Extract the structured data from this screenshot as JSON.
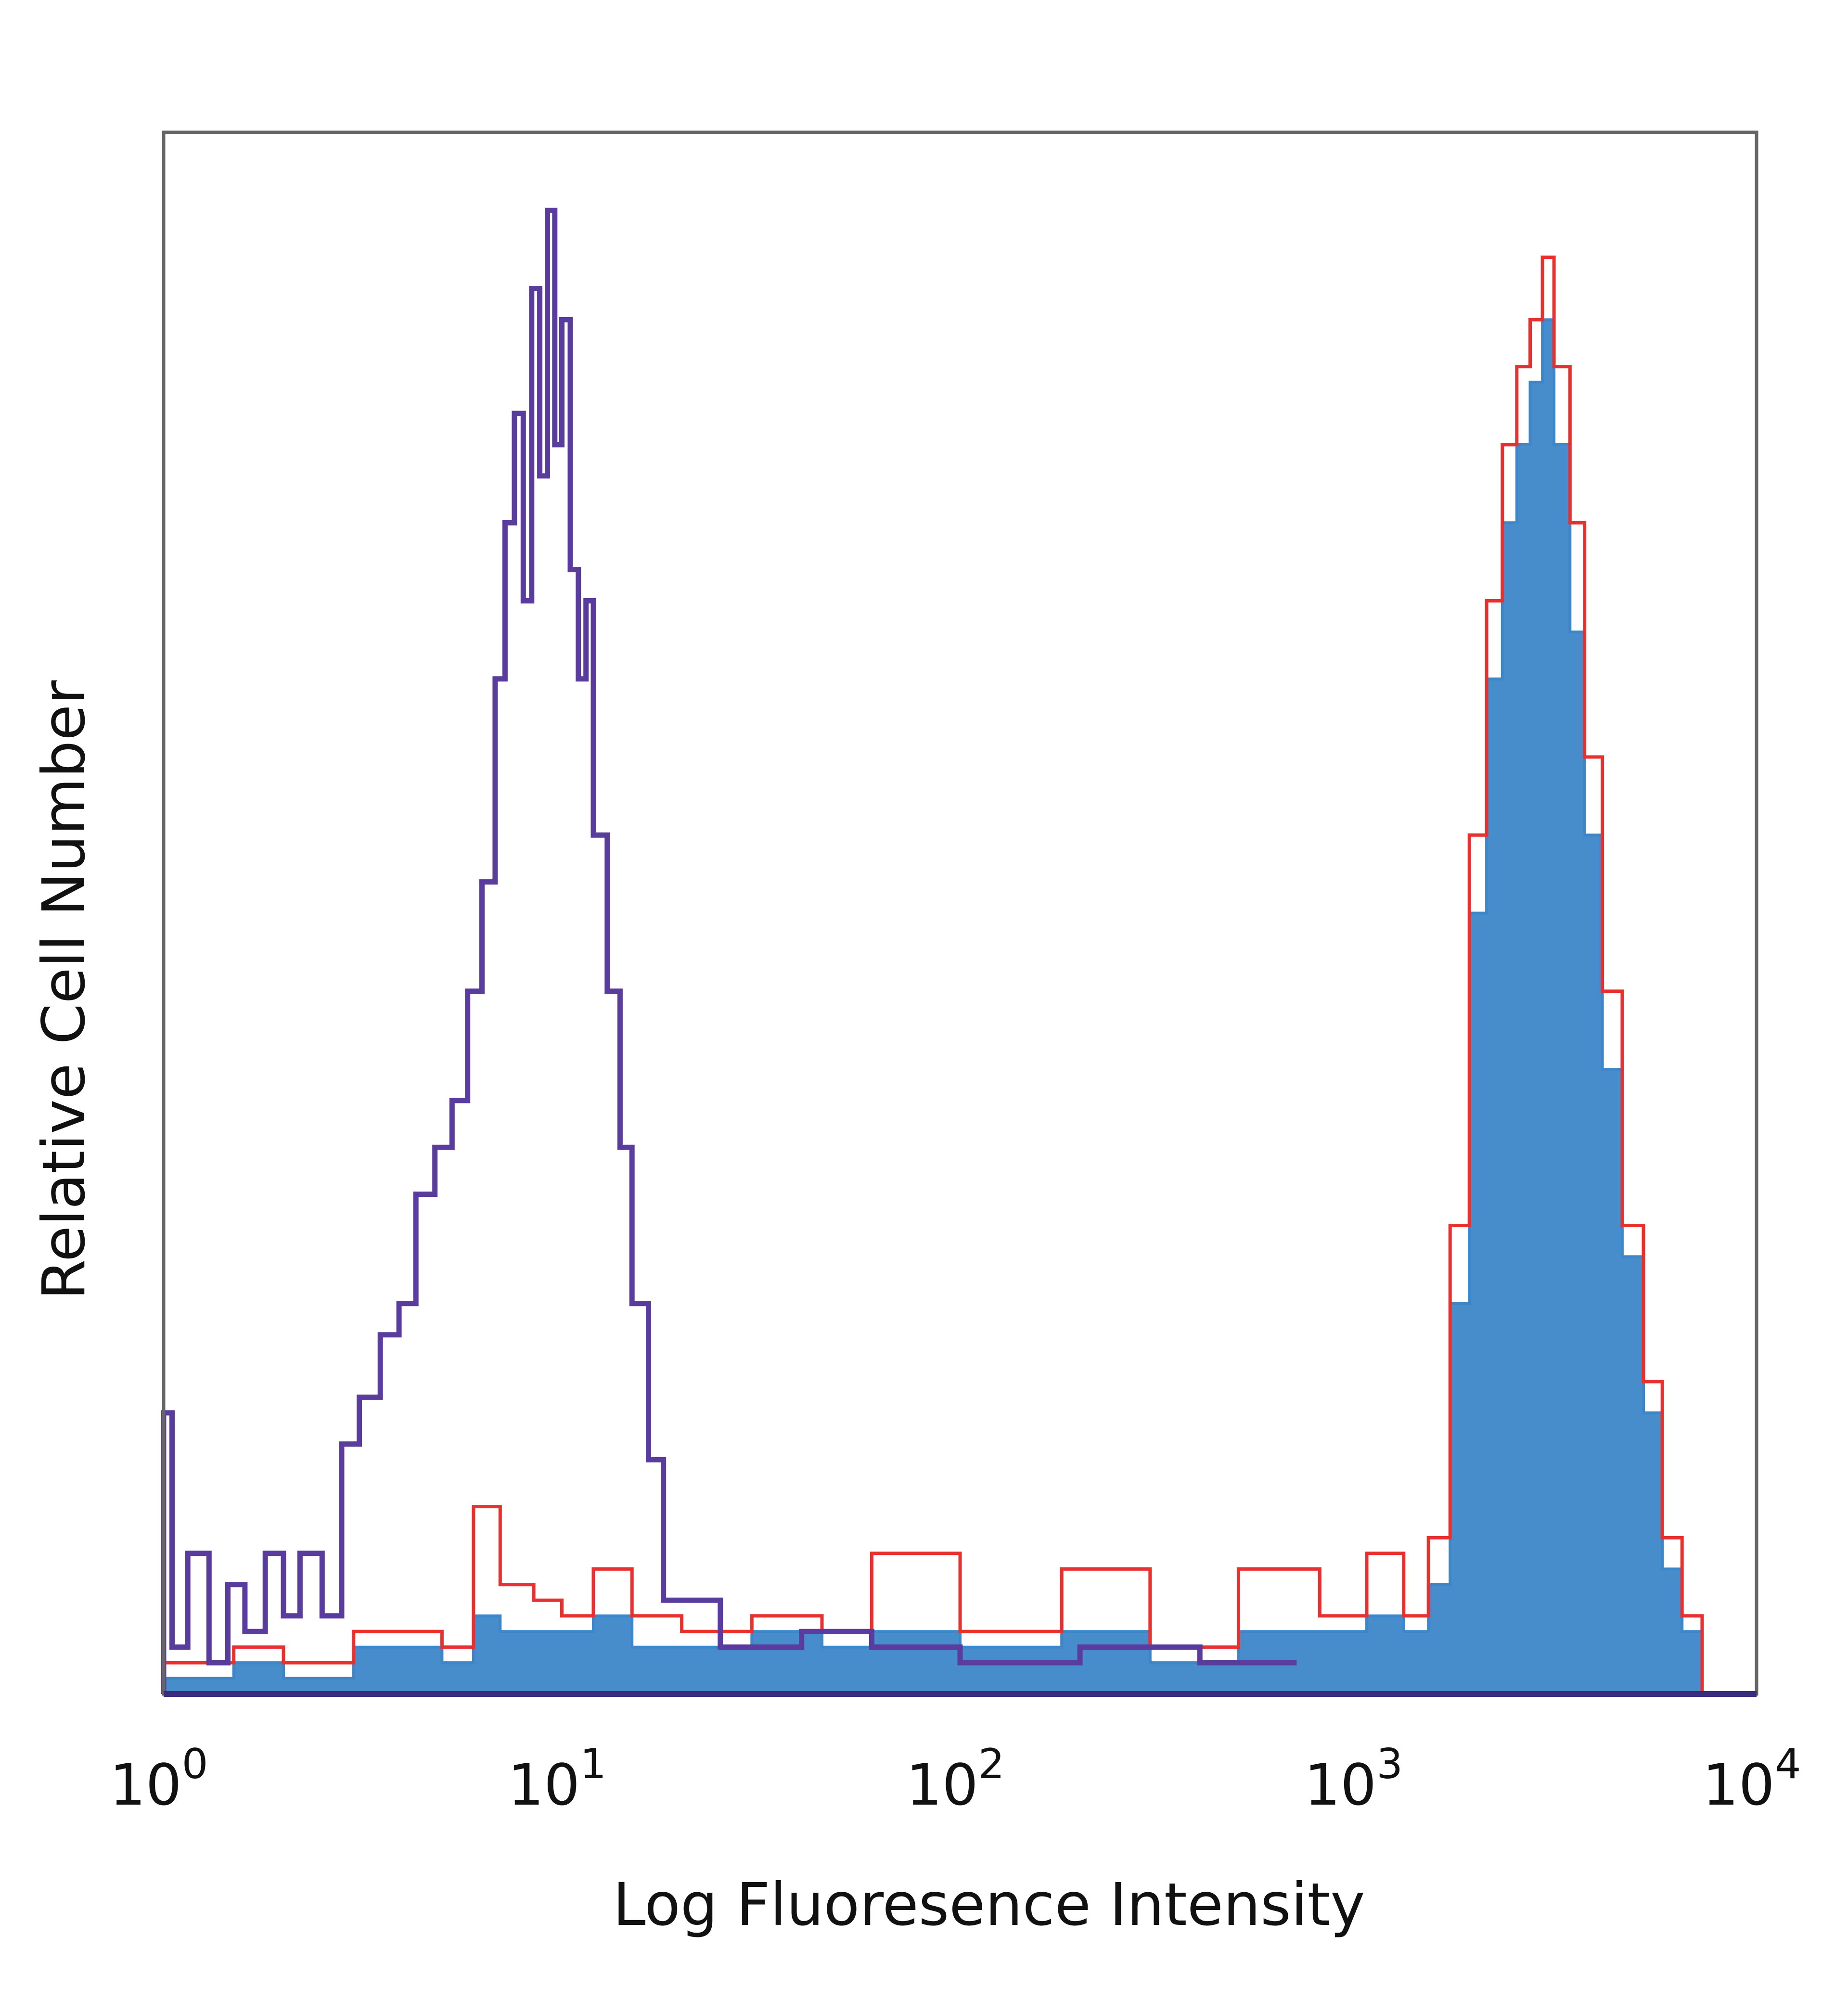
{
  "chart_data": {
    "type": "area",
    "title": "",
    "xlabel": "Log Fluoresence Intensity",
    "ylabel": "Relative Cell Number",
    "x_scale": "log",
    "xlim": [
      1,
      10000
    ],
    "ylim": [
      0,
      100
    ],
    "x_ticks": [
      {
        "value": 1,
        "base": "10",
        "exp": "0"
      },
      {
        "value": 10,
        "base": "10",
        "exp": "1"
      },
      {
        "value": 100,
        "base": "10",
        "exp": "2"
      },
      {
        "value": 1000,
        "base": "10",
        "exp": "3"
      },
      {
        "value": 10000,
        "base": "10",
        "exp": "4"
      }
    ],
    "grid": false,
    "legend": "none",
    "series": [
      {
        "role": "control",
        "color": "#5a3b9e",
        "fill": "none",
        "x": [
          1.0,
          1.05,
          1.15,
          1.3,
          1.45,
          1.6,
          1.8,
          2.0,
          2.2,
          2.5,
          2.8,
          3.1,
          3.5,
          3.9,
          4.3,
          4.8,
          5.3,
          5.8,
          6.3,
          6.8,
          7.2,
          7.6,
          8.0,
          8.4,
          8.8,
          9.2,
          9.6,
          10.0,
          10.5,
          11.0,
          11.5,
          12.0,
          13.0,
          14.0,
          15.0,
          16.5,
          18.0,
          25,
          40,
          60,
          100,
          200,
          400,
          700
        ],
        "y": [
          18,
          3,
          9,
          2,
          7,
          4,
          9,
          5,
          9,
          5,
          16,
          19,
          23,
          25,
          32,
          35,
          38,
          45,
          52,
          65,
          75,
          82,
          70,
          90,
          78,
          95,
          80,
          88,
          72,
          65,
          70,
          55,
          45,
          35,
          25,
          15,
          6,
          3,
          4,
          3,
          2,
          3,
          2,
          2
        ]
      },
      {
        "role": "unstained",
        "color": "#e8312f",
        "fill": "none",
        "x": [
          1.0,
          1.5,
          2.0,
          3.0,
          5.0,
          6.0,
          7.0,
          8.5,
          10.0,
          12.0,
          15.0,
          20,
          30,
          45,
          60,
          100,
          180,
          300,
          500,
          800,
          1050,
          1300,
          1500,
          1700,
          1900,
          2100,
          2300,
          2500,
          2700,
          2900,
          3100,
          3400,
          3700,
          4100,
          4600,
          5200,
          5800,
          6500,
          7300
        ],
        "y": [
          2,
          3,
          2,
          4,
          3,
          12,
          7,
          6,
          5,
          8,
          5,
          4,
          5,
          4,
          9,
          4,
          8,
          3,
          8,
          5,
          9,
          5,
          10,
          30,
          55,
          70,
          80,
          85,
          88,
          92,
          85,
          75,
          60,
          45,
          30,
          20,
          10,
          5,
          0
        ]
      },
      {
        "role": "stained",
        "color": "#3d87c9",
        "fill": "#3d87c9",
        "x": [
          1.0,
          1.5,
          2.0,
          3.0,
          5.0,
          6.0,
          7.0,
          8.5,
          10.0,
          12.0,
          15.0,
          20,
          30,
          45,
          60,
          100,
          180,
          300,
          500,
          800,
          1050,
          1300,
          1500,
          1700,
          1900,
          2100,
          2300,
          2500,
          2700,
          2900,
          3100,
          3400,
          3700,
          4100,
          4600,
          5200,
          5800,
          6500,
          7300
        ],
        "y": [
          1,
          2,
          1,
          3,
          2,
          5,
          4,
          4,
          4,
          5,
          3,
          3,
          4,
          3,
          4,
          3,
          4,
          2,
          4,
          4,
          5,
          4,
          7,
          25,
          50,
          65,
          75,
          80,
          84,
          88,
          80,
          68,
          55,
          40,
          28,
          18,
          8,
          4,
          0
        ]
      }
    ]
  }
}
